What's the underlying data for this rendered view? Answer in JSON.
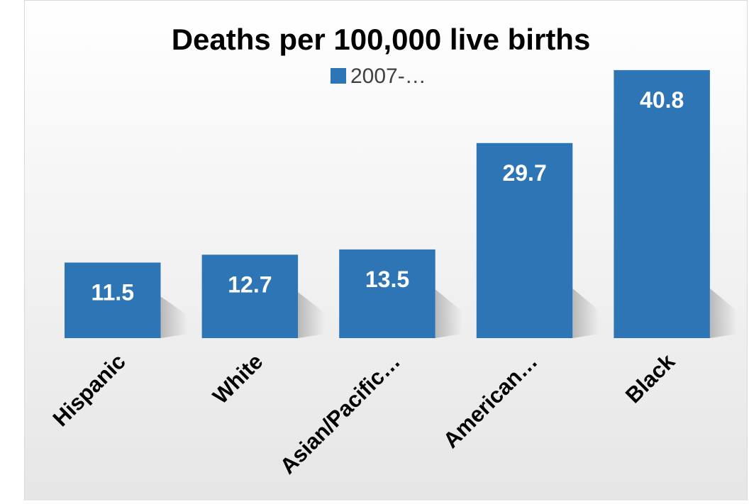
{
  "chart_data": {
    "type": "bar",
    "title": "Deaths per 100,000 live births",
    "legend": {
      "position": "top",
      "entries": [
        "2007-…"
      ]
    },
    "categories": [
      "Hispanic",
      "White",
      "Asian/Pacific…",
      "American…",
      "Black"
    ],
    "series": [
      {
        "name": "2007-…",
        "values": [
          11.5,
          12.7,
          13.5,
          29.7,
          40.8
        ]
      }
    ],
    "data_labels": [
      "11.5",
      "12.7",
      "13.5",
      "29.7",
      "40.8"
    ],
    "ylim": [
      0,
      45
    ],
    "grid": false,
    "colors": {
      "bar": "#2e75b6",
      "label": "#ffffff",
      "text": "#000000",
      "legend_text": "#404040"
    }
  }
}
